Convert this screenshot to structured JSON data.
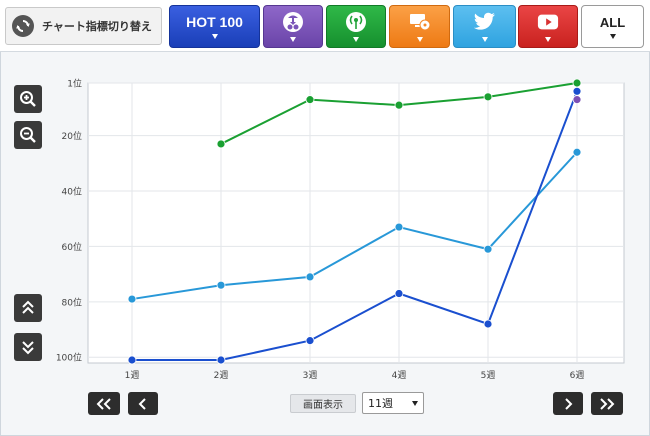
{
  "toolbar": {
    "switch_label": "チャート指標切り替え",
    "hot100_label": "HOT 100",
    "all_label": "ALL",
    "buttons": [
      {
        "key": "hot100",
        "icon": "none",
        "color": "#2a4fd0"
      },
      {
        "key": "sales",
        "icon": "download-cd-icon",
        "color": "#7b55b8"
      },
      {
        "key": "radio",
        "icon": "broadcast-tower-icon",
        "color": "#22a33a"
      },
      {
        "key": "video",
        "icon": "monitor-disc-icon",
        "color": "#f58a2a"
      },
      {
        "key": "twitter",
        "icon": "twitter-bird-icon",
        "color": "#43b1e8"
      },
      {
        "key": "youtube",
        "icon": "youtube-play-icon",
        "color": "#d83232"
      },
      {
        "key": "all",
        "icon": "none",
        "color": "#ffffff"
      }
    ]
  },
  "controls": {
    "screen_label": "画面表示",
    "select_value": "11週"
  },
  "chart_data": {
    "type": "line",
    "categories": [
      "1週",
      "2週",
      "3週",
      "4週",
      "5週",
      "6週"
    ],
    "y_tick_labels": [
      "1位",
      "20位",
      "40位",
      "60位",
      "80位",
      "100位"
    ],
    "y_tick_values": [
      1,
      20,
      40,
      60,
      80,
      100
    ],
    "ylim": [
      1,
      101
    ],
    "y_inverted": true,
    "grid": true,
    "series": [
      {
        "color": "#1aa032",
        "values": [
          null,
          23,
          7,
          9,
          6,
          1
        ]
      },
      {
        "color": "#2898d8",
        "values": [
          79,
          74,
          71,
          53,
          61,
          26
        ]
      },
      {
        "color": "#1a4fcf",
        "values": [
          101,
          101,
          94,
          77,
          88,
          4
        ]
      },
      {
        "color": "#7b4fb5",
        "values": [
          null,
          null,
          null,
          null,
          null,
          7
        ]
      }
    ]
  }
}
